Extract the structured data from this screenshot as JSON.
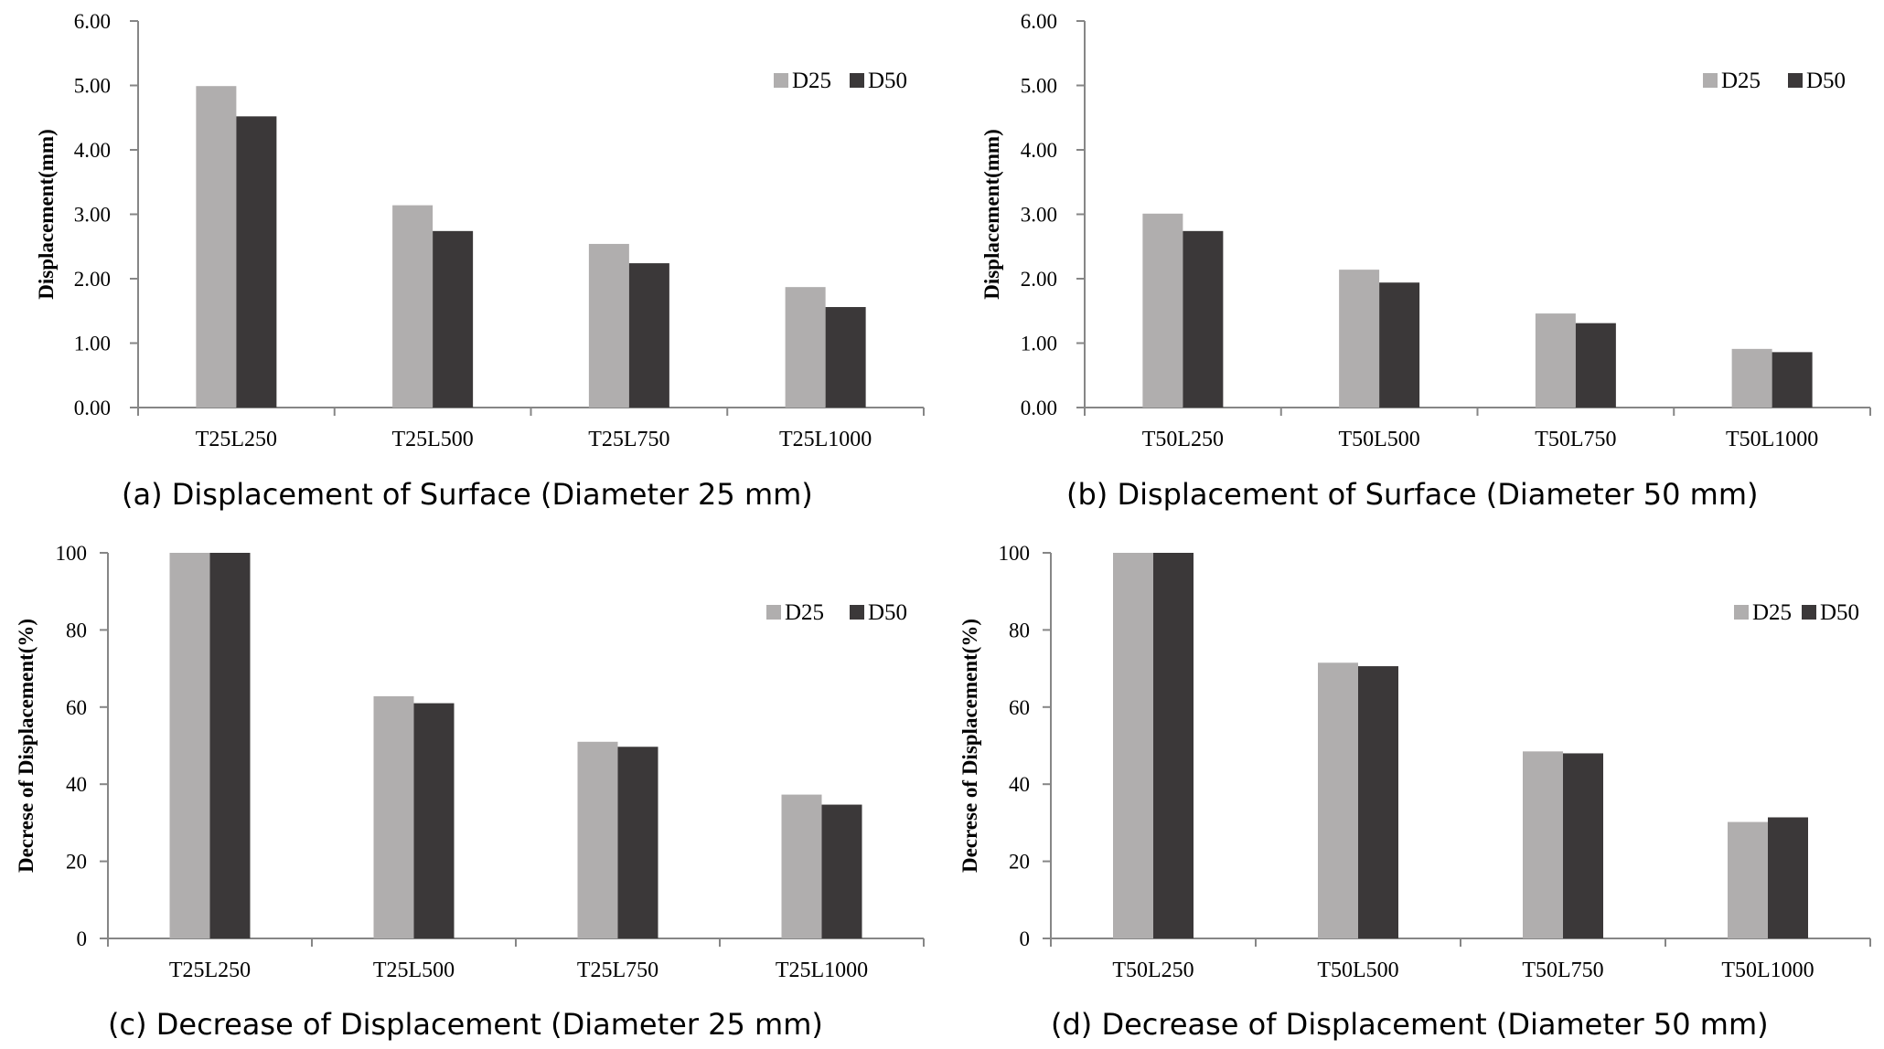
{
  "chart_data": [
    {
      "type": "bar",
      "caption": "(a) Displacement of Surface (Diameter 25 mm)",
      "categories": [
        "T25L250",
        "T25L500",
        "T25L750",
        "T25L1000"
      ],
      "series": [
        {
          "name": "D25",
          "color": "#b0aeae",
          "values": [
            4.99,
            3.14,
            2.54,
            1.87
          ]
        },
        {
          "name": "D50",
          "color": "#3b3839",
          "values": [
            4.52,
            2.74,
            2.24,
            1.56
          ]
        }
      ],
      "yticks": [
        "0.00",
        "1.00",
        "2.00",
        "3.00",
        "4.00",
        "5.00",
        "6.00"
      ],
      "ylim": [
        0,
        6
      ],
      "ylabel": "Displacement(mm)",
      "legend": "top-right",
      "grid": false
    },
    {
      "type": "bar",
      "caption": "(b) Displacement of Surface (Diameter 50 mm)",
      "categories": [
        "T50L250",
        "T50L500",
        "T50L750",
        "T50L1000"
      ],
      "series": [
        {
          "name": "D25",
          "color": "#b0aeae",
          "values": [
            3.01,
            2.14,
            1.46,
            0.91
          ]
        },
        {
          "name": "D50",
          "color": "#3b3839",
          "values": [
            2.74,
            1.94,
            1.31,
            0.86
          ]
        }
      ],
      "yticks": [
        "0.00",
        "1.00",
        "2.00",
        "3.00",
        "4.00",
        "5.00",
        "6.00"
      ],
      "ylim": [
        0,
        6
      ],
      "ylabel": "Displacement(mm)",
      "legend": "top-right",
      "grid": false
    },
    {
      "type": "bar",
      "caption": "(c) Decrease of Displacement (Diameter 25 mm)",
      "categories": [
        "T25L250",
        "T25L500",
        "T25L750",
        "T25L1000"
      ],
      "series": [
        {
          "name": "D25",
          "color": "#b0aeae",
          "values": [
            100,
            62.8,
            51.0,
            37.3
          ]
        },
        {
          "name": "D50",
          "color": "#3b3839",
          "values": [
            100,
            61.0,
            49.7,
            34.7
          ]
        }
      ],
      "yticks": [
        "0",
        "20",
        "40",
        "60",
        "80",
        "100"
      ],
      "ylim": [
        0,
        100
      ],
      "ylabel": "Decrese of Displacement(%)",
      "legend": "top-right",
      "grid": false
    },
    {
      "type": "bar",
      "caption": "(d) Decrease of Displacement (Diameter 50 mm)",
      "categories": [
        "T50L250",
        "T50L500",
        "T50L750",
        "T50L1000"
      ],
      "series": [
        {
          "name": "D25",
          "color": "#b0aeae",
          "values": [
            100,
            71.5,
            48.5,
            30.2
          ]
        },
        {
          "name": "D50",
          "color": "#3b3839",
          "values": [
            100,
            70.6,
            48.0,
            31.4
          ]
        }
      ],
      "yticks": [
        "0",
        "20",
        "40",
        "60",
        "80",
        "100"
      ],
      "ylim": [
        0,
        100
      ],
      "ylabel": "Decrese of Displacement(%)",
      "legend": "top-right",
      "grid": false
    }
  ]
}
